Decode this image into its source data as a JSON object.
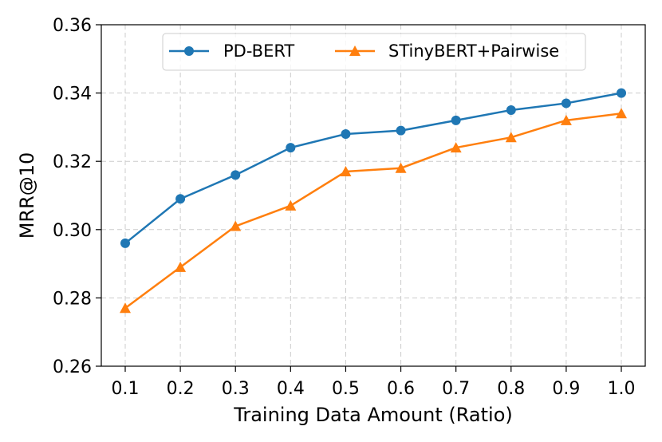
{
  "chart_data": {
    "type": "line",
    "title": "",
    "xlabel": "Training Data Amount (Ratio)",
    "ylabel": "MRR@10",
    "x": [
      0.1,
      0.2,
      0.3,
      0.4,
      0.5,
      0.6,
      0.7,
      0.8,
      0.9,
      1.0
    ],
    "x_tick_labels": [
      "0.1",
      "0.2",
      "0.3",
      "0.4",
      "0.5",
      "0.6",
      "0.7",
      "0.8",
      "0.9",
      "1.0"
    ],
    "ylim": [
      0.26,
      0.36
    ],
    "y_ticks": [
      0.26,
      0.28,
      0.3,
      0.32,
      0.34,
      0.36
    ],
    "y_tick_labels": [
      "0.26",
      "0.28",
      "0.30",
      "0.32",
      "0.34",
      "0.36"
    ],
    "grid": true,
    "legend_position": "top-center",
    "series": [
      {
        "name": "PD-BERT",
        "color": "#1f77b4",
        "marker": "circle",
        "values": [
          0.296,
          0.309,
          0.316,
          0.324,
          0.328,
          0.329,
          0.332,
          0.335,
          0.337,
          0.34
        ]
      },
      {
        "name": "STinyBERT+Pairwise",
        "color": "#ff7f0e",
        "marker": "triangle",
        "values": [
          0.277,
          0.289,
          0.301,
          0.307,
          0.317,
          0.318,
          0.324,
          0.327,
          0.332,
          0.334
        ]
      }
    ]
  }
}
